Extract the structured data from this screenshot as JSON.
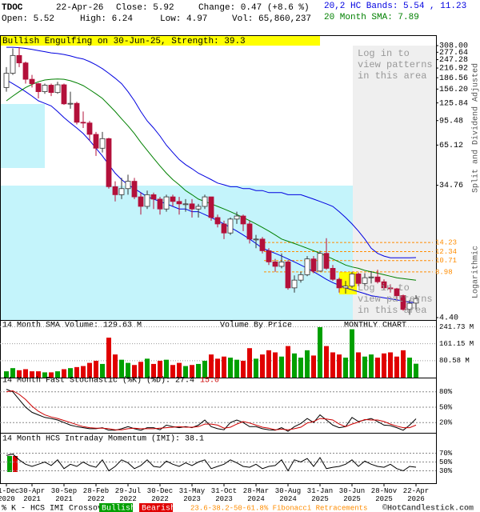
{
  "header": {
    "symbol": "TDOC",
    "date": "22-Apr-26",
    "close": "Close: 5.92",
    "change": "Change: 0.47 (+8.6 %)",
    "open": "Open: 5.52",
    "high": "High: 6.24",
    "low": "Low: 4.97",
    "volume": "Vol: 65,860,237",
    "bands_legend": "20,2 HC Bands: 5.54 , 11.23",
    "sma_legend": "20 Month SMA: 7.89",
    "pattern": "Bullish Engulfing on 30-Jun-25, Strength: 39.3",
    "login_note_top": "Log in to view patterns in this area",
    "login_note_bottom": "Log in to view patterns in this area",
    "axis_note": "Split and Dividend Adjusted",
    "scale_note": "Logarithmic"
  },
  "chart_data": [
    {
      "type": "candlestick",
      "log_scale": true,
      "categories": [
        "31-Dec 2020",
        null,
        null,
        null,
        "30-Apr 2021",
        null,
        null,
        null,
        null,
        "30-Sep 2021",
        null,
        null,
        null,
        null,
        "28-Feb 2022",
        null,
        null,
        null,
        null,
        "29-Jul 2022",
        null,
        null,
        null,
        null,
        "30-Dec 2022",
        null,
        null,
        null,
        null,
        "31-May 2023",
        null,
        null,
        null,
        null,
        "31-Oct 2023",
        null,
        null,
        null,
        null,
        "28-Mar 2024",
        null,
        null,
        null,
        null,
        "30-Aug 2024",
        null,
        null,
        null,
        null,
        "31-Jan 2025",
        null,
        null,
        null,
        null,
        "30-Jun 2025",
        null,
        null,
        null,
        null,
        "28-Nov 2025",
        null,
        null,
        null,
        null,
        "22-Apr 2026"
      ],
      "candles": [
        [
          160,
          220,
          150,
          200
        ],
        [
          200,
          295,
          195,
          264
        ],
        [
          264,
          300,
          220,
          235
        ],
        [
          235,
          240,
          170,
          182
        ],
        [
          182,
          195,
          160,
          170
        ],
        [
          170,
          172,
          135,
          150
        ],
        [
          150,
          170,
          145,
          166
        ],
        [
          166,
          170,
          140,
          148
        ],
        [
          148,
          175,
          145,
          167
        ],
        [
          167,
          170,
          122,
          124
        ],
        [
          124,
          150,
          115,
          125
        ],
        [
          125,
          128,
          90,
          93
        ],
        [
          93,
          110,
          85,
          92
        ],
        [
          92,
          95,
          70,
          77
        ],
        [
          77,
          80,
          55,
          62
        ],
        [
          62,
          80,
          58,
          72
        ],
        [
          72,
          73,
          33,
          34
        ],
        [
          34,
          37,
          27,
          30
        ],
        [
          30,
          39,
          28,
          33
        ],
        [
          33,
          41,
          30,
          37
        ],
        [
          37,
          39,
          28,
          29
        ],
        [
          29,
          31,
          22,
          25
        ],
        [
          25,
          32,
          24,
          30
        ],
        [
          30,
          31,
          24,
          28
        ],
        [
          28,
          29,
          22,
          24
        ],
        [
          24,
          30,
          23,
          29
        ],
        [
          29,
          30,
          25,
          27
        ],
        [
          27,
          29,
          22,
          26
        ],
        [
          26,
          28,
          23,
          26
        ],
        [
          26,
          28,
          21,
          24
        ],
        [
          24,
          26,
          21,
          25
        ],
        [
          25,
          30,
          24,
          29
        ],
        [
          29,
          29,
          20,
          21
        ],
        [
          21,
          22,
          18,
          19
        ],
        [
          19,
          20,
          15,
          16.5
        ],
        [
          16.5,
          21,
          16,
          20.5
        ],
        [
          20.5,
          23,
          19,
          21.5
        ],
        [
          21.5,
          22,
          17,
          19
        ],
        [
          19,
          20,
          14,
          15
        ],
        [
          15,
          16,
          13,
          15
        ],
        [
          15,
          15.5,
          12,
          12.5
        ],
        [
          12.5,
          13,
          10,
          10.5
        ],
        [
          10.5,
          11,
          9,
          9.8
        ],
        [
          9.8,
          12,
          9.5,
          10.5
        ],
        [
          10.5,
          10.8,
          6.8,
          7
        ],
        [
          7,
          8.5,
          6.5,
          7.9
        ],
        [
          7.9,
          9,
          7.6,
          8.6
        ],
        [
          8.6,
          11.5,
          8.4,
          11
        ],
        [
          11,
          11.5,
          8.8,
          9.1
        ],
        [
          9.1,
          12.5,
          9,
          12
        ],
        [
          12,
          15.2,
          9.3,
          9.5
        ],
        [
          9.5,
          10,
          7.8,
          8
        ],
        [
          8,
          8.2,
          6.5,
          7
        ],
        [
          7,
          7.8,
          6.4,
          7.2
        ],
        [
          7.2,
          9,
          7,
          8.7
        ],
        [
          8.7,
          8.9,
          7.2,
          7.5
        ],
        [
          7.5,
          8.8,
          7.2,
          8.2
        ],
        [
          8.2,
          9.1,
          7.5,
          8.3
        ],
        [
          8.3,
          9.3,
          7.5,
          7.7
        ],
        [
          7.7,
          8,
          6.8,
          7
        ],
        [
          7,
          7.4,
          6.5,
          6.9
        ],
        [
          6.9,
          7,
          5.8,
          6.2
        ],
        [
          6.2,
          6.3,
          4.9,
          5
        ],
        [
          5,
          5.8,
          4.6,
          5.5
        ],
        [
          5.52,
          6.24,
          4.97,
          5.92
        ]
      ],
      "up_color": "#ffffff",
      "down_color": "#b3103a",
      "series": [
        {
          "color": "#0000e0",
          "values": [
            300,
            300,
            298,
            295,
            290,
            285,
            280,
            275,
            272,
            268,
            262,
            255,
            250,
            240,
            228,
            215,
            200,
            185,
            170,
            150,
            130,
            110,
            95,
            85,
            75,
            65,
            58,
            52,
            48,
            45,
            42,
            40,
            38,
            36,
            35,
            34,
            34,
            33,
            33,
            32,
            32,
            31,
            31,
            31,
            30,
            30,
            30,
            29,
            28,
            27,
            26,
            25,
            23,
            21,
            19,
            17,
            15,
            13,
            12,
            11.5,
            11.2,
            11.2,
            11.2,
            11.2,
            11.23
          ]
        },
        {
          "color": "#0000e0",
          "values": [
            180,
            170,
            160,
            150,
            140,
            130,
            125,
            120,
            110,
            100,
            92,
            85,
            78,
            70,
            62,
            55,
            48,
            42,
            38,
            35,
            33,
            31,
            29,
            28,
            27,
            26,
            25,
            24,
            24,
            23,
            23,
            22,
            21,
            20,
            19,
            18,
            17,
            16,
            15,
            14,
            13,
            12.5,
            12,
            11.5,
            11,
            10.5,
            10,
            9.5,
            9,
            8.5,
            8,
            7.6,
            7.3,
            7,
            6.8,
            6.6,
            6.4,
            6.2,
            6.1,
            6,
            5.9,
            5.8,
            5.7,
            5.6,
            5.54
          ]
        },
        {
          "color": "#008000",
          "values": [
            130,
            140,
            150,
            160,
            168,
            175,
            180,
            182,
            183,
            182,
            178,
            172,
            165,
            155,
            145,
            135,
            122,
            110,
            98,
            88,
            78,
            68,
            60,
            53,
            47,
            42,
            38,
            35,
            32,
            30,
            28,
            27,
            26,
            25,
            24,
            23,
            22,
            21,
            20,
            19,
            18,
            17,
            16,
            15,
            14.5,
            14,
            13.5,
            13,
            12.5,
            12,
            11.5,
            11,
            10.5,
            10,
            9.7,
            9.5,
            9.2,
            9,
            8.8,
            8.6,
            8.4,
            8.2,
            8.1,
            8,
            7.89
          ]
        }
      ],
      "fib_levels": [
        14.23,
        12.34,
        10.71,
        8.98
      ],
      "fib_color": "#ff8c00",
      "ylim": [
        4.4,
        308
      ],
      "yticks": [
        {
          "value": 308,
          "label": "308.00"
        },
        277.64,
        247.28,
        216.92,
        186.56,
        {
          "value": 156.2,
          "label": "156.20"
        },
        125.84,
        95.48,
        65.12,
        34.76,
        {
          "value": 4.4,
          "label": "4.40"
        }
      ]
    },
    {
      "type": "bar",
      "title": "14 Month SMA Volume: 129.63 M",
      "subtitle": "Volume By Price",
      "annotation": "MONTHLY CHART",
      "values": [
        30,
        45,
        35,
        40,
        30,
        30,
        25,
        25,
        30,
        40,
        45,
        50,
        55,
        70,
        80,
        65,
        190,
        110,
        85,
        70,
        60,
        75,
        90,
        65,
        80,
        85,
        60,
        70,
        55,
        60,
        65,
        80,
        110,
        90,
        100,
        95,
        85,
        80,
        140,
        90,
        110,
        130,
        120,
        100,
        150,
        115,
        95,
        130,
        105,
        240,
        150,
        120,
        110,
        95,
        230,
        120,
        100,
        110,
        95,
        115,
        120,
        100,
        130,
        95,
        66
      ],
      "up_color": "#00a000",
      "down_color": "#e00000",
      "ylim": [
        0,
        255
      ],
      "yticks": [
        {
          "value": 241.73,
          "label": "241.73 M"
        },
        {
          "value": 161.15,
          "label": "161.15 M"
        },
        {
          "value": 80.58,
          "label": "80.58 M"
        }
      ]
    },
    {
      "type": "line",
      "title": "14 Month Fast Stochastic (%K) (%D): 27.4",
      "title_d": "15.0",
      "series": [
        {
          "color": "#000000",
          "values": [
            85,
            80,
            65,
            50,
            40,
            35,
            30,
            28,
            25,
            20,
            15,
            12,
            10,
            8,
            8,
            10,
            5,
            5,
            8,
            12,
            8,
            5,
            10,
            10,
            6,
            15,
            12,
            10,
            12,
            10,
            15,
            25,
            12,
            8,
            6,
            20,
            25,
            20,
            12,
            12,
            8,
            6,
            5,
            10,
            3,
            12,
            18,
            28,
            20,
            35,
            25,
            15,
            10,
            12,
            30,
            22,
            25,
            28,
            22,
            15,
            14,
            10,
            5,
            15,
            27.4
          ]
        },
        {
          "color": "#cc0000",
          "values": [
            80,
            82,
            75,
            65,
            52,
            42,
            35,
            31,
            28,
            24,
            20,
            16,
            12,
            10,
            9,
            9,
            8,
            6,
            6,
            8,
            9,
            8,
            8,
            8,
            9,
            10,
            11,
            12,
            11,
            11,
            12,
            17,
            17,
            15,
            9,
            11,
            17,
            22,
            19,
            15,
            11,
            9,
            6,
            7,
            6,
            8,
            11,
            19,
            22,
            28,
            27,
            25,
            17,
            12,
            17,
            21,
            26,
            25,
            25,
            22,
            17,
            13,
            10,
            10,
            15.0
          ]
        }
      ],
      "ylim": [
        0,
        100
      ],
      "yticks": [
        {
          "value": 80,
          "label": "80%"
        },
        {
          "value": 50,
          "label": "50%"
        },
        {
          "value": 20,
          "label": "20%"
        }
      ]
    },
    {
      "type": "line",
      "title": "14 Month HCS Intraday Momentum (IMI): 38.1",
      "series": [
        {
          "color": "#000000",
          "values": [
            65,
            68,
            55,
            45,
            40,
            45,
            50,
            42,
            55,
            35,
            45,
            40,
            50,
            42,
            38,
            55,
            30,
            40,
            55,
            48,
            35,
            42,
            55,
            40,
            38,
            52,
            45,
            40,
            48,
            42,
            50,
            55,
            35,
            40,
            45,
            55,
            48,
            40,
            38,
            45,
            35,
            40,
            42,
            55,
            30,
            55,
            50,
            58,
            40,
            60,
            35,
            38,
            40,
            45,
            55,
            40,
            52,
            45,
            40,
            38,
            45,
            35,
            30,
            40,
            38.1
          ]
        }
      ],
      "ylim": [
        0,
        100
      ],
      "yticks": [
        {
          "value": 70,
          "label": "70%"
        },
        {
          "value": 50,
          "label": "50%"
        },
        {
          "value": 30,
          "label": "30%"
        }
      ]
    }
  ],
  "footer": {
    "crossover": "% K - HCS IMI Crossover:",
    "bullish": "Bullish",
    "bearish": "Bearish",
    "fibonacci": "23.6-38.2-50-61.8% Fibonacci Retracements",
    "copyright": "©HotCandlestick.com"
  }
}
